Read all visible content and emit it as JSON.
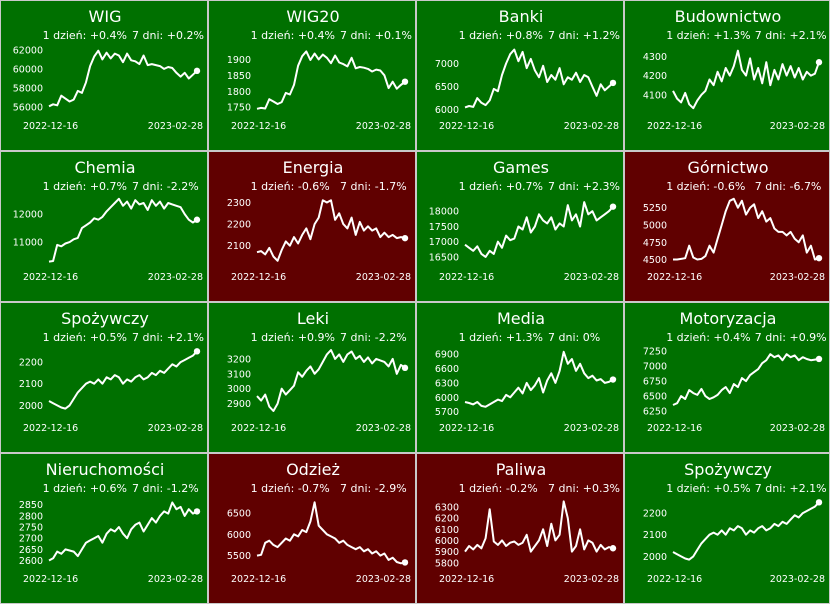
{
  "colors": {
    "up": "#007000",
    "down": "#600000",
    "line": "#ffffff"
  },
  "chart_data": [
    {
      "type": "line",
      "title": "WIG",
      "day": "1 dzień: +0.4%",
      "week": "7 dni: +0.2%",
      "trend": "up",
      "x_start": "2022-12-16",
      "x_end": "2023-02-28",
      "yticks": [
        56000,
        58000,
        60000,
        62000
      ],
      "ylim": [
        55500,
        62500
      ],
      "values": [
        56100,
        56300,
        56200,
        57200,
        56900,
        56600,
        56800,
        57700,
        57500,
        58600,
        60300,
        61300,
        61900,
        61000,
        61700,
        61100,
        61600,
        61400,
        60700,
        61600,
        60900,
        60800,
        60500,
        61400,
        60400,
        60500,
        60400,
        60300,
        60000,
        60200,
        60100,
        59600,
        59200,
        59600,
        59000,
        59400,
        59800
      ]
    },
    {
      "type": "line",
      "title": "WIG20",
      "day": "1 dzień: +0.4%",
      "week": "7 dni: +0.1%",
      "trend": "up",
      "x_start": "2022-12-16",
      "x_end": "2023-02-28",
      "yticks": [
        1750,
        1800,
        1850,
        1900
      ],
      "ylim": [
        1735,
        1945
      ],
      "values": [
        1745,
        1748,
        1746,
        1775,
        1768,
        1760,
        1766,
        1795,
        1790,
        1820,
        1880,
        1910,
        1925,
        1898,
        1918,
        1900,
        1915,
        1905,
        1888,
        1912,
        1890,
        1885,
        1878,
        1905,
        1872,
        1876,
        1874,
        1870,
        1862,
        1868,
        1865,
        1850,
        1810,
        1830,
        1808,
        1820,
        1830
      ]
    },
    {
      "type": "line",
      "title": "Banki",
      "day": "1 dzień: +0.8%",
      "week": "7 dni: +1.2%",
      "trend": "up",
      "x_start": "2022-12-16",
      "x_end": "2023-02-28",
      "yticks": [
        6000,
        6500,
        7000
      ],
      "ylim": [
        5950,
        7400
      ],
      "values": [
        6050,
        6080,
        6060,
        6250,
        6150,
        6100,
        6200,
        6450,
        6400,
        6750,
        7000,
        7200,
        7300,
        7050,
        7250,
        6900,
        7100,
        6850,
        6700,
        6950,
        6600,
        6750,
        6650,
        6900,
        6550,
        6700,
        6650,
        6800,
        6600,
        6750,
        6700,
        6500,
        6300,
        6550,
        6420,
        6500,
        6580
      ]
    },
    {
      "type": "line",
      "title": "Budownictwo",
      "day": "1 dzień: +1.3%",
      "week": "7 dni: +2.1%",
      "trend": "up",
      "x_start": "2022-12-16",
      "x_end": "2023-02-28",
      "yticks": [
        4100,
        4200,
        4300
      ],
      "ylim": [
        4010,
        4360
      ],
      "values": [
        4120,
        4080,
        4060,
        4110,
        4050,
        4030,
        4070,
        4100,
        4120,
        4180,
        4150,
        4220,
        4170,
        4240,
        4200,
        4250,
        4330,
        4230,
        4200,
        4290,
        4180,
        4240,
        4160,
        4270,
        4150,
        4230,
        4180,
        4260,
        4200,
        4250,
        4190,
        4240,
        4180,
        4220,
        4200,
        4210,
        4270
      ]
    },
    {
      "type": "line",
      "title": "Chemia",
      "day": "1 dzień: +0.7%",
      "week": "7 dni: -2.2%",
      "trend": "up",
      "x_start": "2022-12-16",
      "x_end": "2023-02-28",
      "yticks": [
        11000,
        12000
      ],
      "ylim": [
        10250,
        12650
      ],
      "values": [
        10300,
        10320,
        10900,
        10850,
        10950,
        11000,
        11100,
        11150,
        11500,
        11600,
        11700,
        11850,
        11800,
        11900,
        12100,
        12250,
        12400,
        12550,
        12300,
        12450,
        12200,
        12500,
        12350,
        12400,
        12150,
        12500,
        12300,
        12450,
        12200,
        12400,
        12350,
        12300,
        12250,
        12000,
        11800,
        11700,
        11800
      ]
    },
    {
      "type": "line",
      "title": "Energia",
      "day": "1 dzień: -0.6%",
      "week": "7 dni: -1.7%",
      "trend": "down",
      "x_start": "2022-12-16",
      "x_end": "2023-02-28",
      "yticks": [
        2100,
        2200,
        2300
      ],
      "ylim": [
        2020,
        2330
      ],
      "values": [
        2070,
        2075,
        2060,
        2090,
        2050,
        2030,
        2080,
        2120,
        2100,
        2140,
        2110,
        2150,
        2180,
        2130,
        2200,
        2230,
        2310,
        2300,
        2310,
        2220,
        2250,
        2200,
        2180,
        2230,
        2150,
        2210,
        2170,
        2190,
        2170,
        2180,
        2140,
        2160,
        2140,
        2150,
        2135,
        2140,
        2135
      ]
    },
    {
      "type": "line",
      "title": "Games",
      "day": "1 dzień: +0.7%",
      "week": "7 dni: +2.3%",
      "trend": "up",
      "x_start": "2022-12-16",
      "x_end": "2023-02-28",
      "yticks": [
        16500,
        17000,
        17500,
        18000
      ],
      "ylim": [
        16300,
        18500
      ],
      "values": [
        16900,
        16800,
        16700,
        16850,
        16600,
        16500,
        16700,
        16600,
        17000,
        16800,
        17200,
        17050,
        17100,
        17500,
        17400,
        17800,
        17300,
        17500,
        17900,
        17700,
        17600,
        17800,
        17400,
        17600,
        17500,
        18200,
        17700,
        17900,
        17500,
        18300,
        17900,
        18000,
        17700,
        17800,
        17900,
        18000,
        18150
      ]
    },
    {
      "type": "line",
      "title": "Górnictwo",
      "day": "1 dzień: -0.6%",
      "week": "7 dni: -6.7%",
      "trend": "down",
      "x_start": "2022-12-16",
      "x_end": "2023-02-28",
      "yticks": [
        4500,
        4750,
        5000,
        5250
      ],
      "ylim": [
        4450,
        5420
      ],
      "values": [
        4500,
        4500,
        4510,
        4520,
        4700,
        4530,
        4500,
        4510,
        4550,
        4700,
        4600,
        4800,
        5000,
        5200,
        5350,
        5380,
        5250,
        5350,
        5150,
        5250,
        5300,
        5100,
        5200,
        5050,
        5100,
        4950,
        4900,
        4900,
        4850,
        4900,
        4800,
        4750,
        4850,
        4600,
        4700,
        4500,
        4520
      ]
    },
    {
      "type": "line",
      "title": "Spożywczy",
      "day": "1 dzień: +0.5%",
      "week": "7 dni: +2.1%",
      "trend": "up",
      "x_start": "2022-12-16",
      "x_end": "2023-02-28",
      "yticks": [
        2000,
        2100,
        2200
      ],
      "ylim": [
        1960,
        2270
      ],
      "values": [
        2020,
        2010,
        2000,
        1990,
        1985,
        2000,
        2030,
        2060,
        2080,
        2100,
        2110,
        2100,
        2120,
        2100,
        2130,
        2120,
        2140,
        2130,
        2100,
        2120,
        2110,
        2130,
        2140,
        2120,
        2130,
        2150,
        2140,
        2160,
        2150,
        2170,
        2190,
        2180,
        2200,
        2210,
        2220,
        2230,
        2250
      ]
    },
    {
      "type": "line",
      "title": "Leki",
      "day": "1 dzień: +0.9%",
      "week": "7 dni: -2.2%",
      "trend": "up",
      "x_start": "2022-12-16",
      "x_end": "2023-02-28",
      "yticks": [
        2900,
        3000,
        3100,
        3200
      ],
      "ylim": [
        2830,
        3280
      ],
      "values": [
        2950,
        2920,
        2960,
        2880,
        2850,
        2900,
        3000,
        2960,
        2990,
        3020,
        3110,
        3080,
        3120,
        3150,
        3100,
        3130,
        3180,
        3230,
        3260,
        3200,
        3230,
        3180,
        3230,
        3250,
        3200,
        3220,
        3180,
        3210,
        3170,
        3200,
        3190,
        3180,
        3150,
        3200,
        3100,
        3160,
        3140
      ]
    },
    {
      "type": "line",
      "title": "Media",
      "day": "1 dzień: +1.3%",
      "week": "7 dni: 0%",
      "trend": "up",
      "x_start": "2022-12-16",
      "x_end": "2023-02-28",
      "yticks": [
        5700,
        6000,
        6300,
        6600,
        6900
      ],
      "ylim": [
        5650,
        7050
      ],
      "values": [
        5900,
        5880,
        5850,
        5900,
        5820,
        5800,
        5850,
        5900,
        5950,
        5920,
        6050,
        6000,
        6100,
        6200,
        6080,
        6300,
        6150,
        6250,
        6400,
        6100,
        6350,
        6500,
        6300,
        6550,
        6950,
        6700,
        6800,
        6550,
        6700,
        6500,
        6400,
        6450,
        6350,
        6380,
        6300,
        6320,
        6370
      ]
    },
    {
      "type": "line",
      "title": "Motoryzacja",
      "day": "1 dzień: +0.4%",
      "week": "7 dni: +0.9%",
      "trend": "up",
      "x_start": "2022-12-16",
      "x_end": "2023-02-28",
      "yticks": [
        6250,
        6500,
        6750,
        7000,
        7250
      ],
      "ylim": [
        6200,
        7320
      ],
      "values": [
        6350,
        6380,
        6500,
        6450,
        6600,
        6550,
        6520,
        6620,
        6500,
        6450,
        6480,
        6520,
        6600,
        6650,
        6550,
        6700,
        6650,
        6800,
        6750,
        6850,
        6900,
        6950,
        7050,
        7100,
        7200,
        7150,
        7180,
        7100,
        7200,
        7150,
        7180,
        7100,
        7150,
        7120,
        7100,
        7110,
        7120
      ]
    },
    {
      "type": "line",
      "title": "Nieruchomości",
      "day": "1 dzień: +0.6%",
      "week": "7 dni: -1.2%",
      "trend": "up",
      "x_start": "2022-12-16",
      "x_end": "2023-02-28",
      "yticks": [
        2600,
        2650,
        2700,
        2750,
        2800,
        2850
      ],
      "ylim": [
        2580,
        2880
      ],
      "values": [
        2600,
        2610,
        2640,
        2630,
        2650,
        2645,
        2640,
        2620,
        2650,
        2680,
        2690,
        2700,
        2710,
        2680,
        2720,
        2740,
        2730,
        2750,
        2720,
        2700,
        2740,
        2760,
        2770,
        2730,
        2760,
        2790,
        2770,
        2800,
        2820,
        2810,
        2860,
        2830,
        2840,
        2800,
        2830,
        2810,
        2820
      ]
    },
    {
      "type": "line",
      "title": "Odzież",
      "day": "1 dzień: -0.7%",
      "week": "7 dni: -2.9%",
      "trend": "down",
      "x_start": "2022-12-16",
      "x_end": "2023-02-28",
      "yticks": [
        5500,
        6000,
        6500
      ],
      "ylim": [
        5280,
        6850
      ],
      "values": [
        5500,
        5520,
        5800,
        5850,
        5750,
        5700,
        5800,
        5900,
        5850,
        6000,
        5950,
        6100,
        6050,
        6300,
        6750,
        6200,
        6100,
        6000,
        5950,
        5900,
        5800,
        5850,
        5750,
        5700,
        5650,
        5700,
        5600,
        5650,
        5550,
        5600,
        5500,
        5550,
        5400,
        5450,
        5350,
        5320,
        5340
      ]
    },
    {
      "type": "line",
      "title": "Paliwa",
      "day": "1 dzień: -0.2%",
      "week": "7 dni: +0.3%",
      "trend": "down",
      "x_start": "2022-12-16",
      "x_end": "2023-02-28",
      "yticks": [
        5800,
        5900,
        6000,
        6100,
        6200,
        6300
      ],
      "ylim": [
        5780,
        6380
      ],
      "values": [
        5900,
        5950,
        5920,
        5960,
        5930,
        6020,
        6280,
        5990,
        5960,
        6000,
        5950,
        5980,
        5990,
        5960,
        5980,
        6050,
        5900,
        5950,
        6000,
        6100,
        5950,
        6150,
        6000,
        6050,
        6350,
        6200,
        5900,
        5950,
        6100,
        5920,
        6000,
        5980,
        5900,
        5960,
        5920,
        5940,
        5930
      ]
    },
    {
      "type": "line",
      "title": "Spożywczy",
      "day": "1 dzień: +0.5%",
      "week": "7 dni: +2.1%",
      "trend": "up",
      "x_start": "2022-12-16",
      "x_end": "2023-02-28",
      "yticks": [
        2000,
        2100,
        2200
      ],
      "ylim": [
        1960,
        2270
      ],
      "values": [
        2020,
        2010,
        2000,
        1990,
        1985,
        2000,
        2030,
        2060,
        2080,
        2100,
        2110,
        2100,
        2120,
        2100,
        2130,
        2120,
        2140,
        2130,
        2100,
        2120,
        2110,
        2130,
        2140,
        2120,
        2130,
        2150,
        2140,
        2160,
        2150,
        2170,
        2190,
        2180,
        2200,
        2210,
        2220,
        2230,
        2250
      ]
    }
  ]
}
